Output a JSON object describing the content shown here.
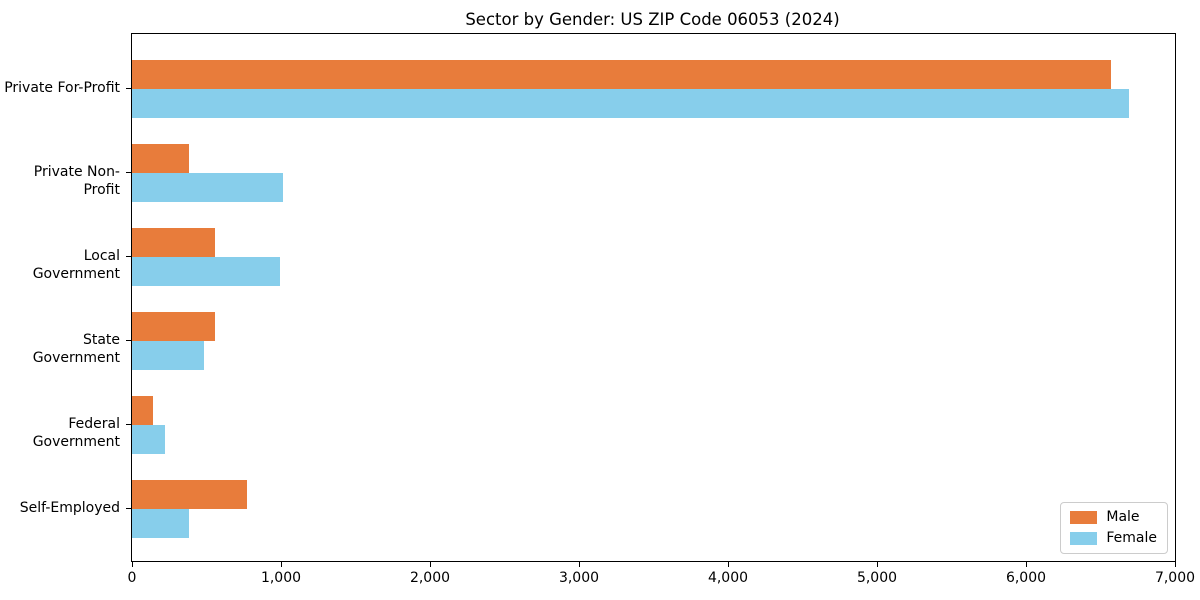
{
  "chart_data": {
    "type": "bar",
    "orientation": "horizontal",
    "title": "Sector by Gender: US ZIP Code 06053 (2024)",
    "categories": [
      "Private For-Profit",
      "Private Non-Profit",
      "Local Government",
      "State Government",
      "Federal Government",
      "Self-Employed"
    ],
    "series": [
      {
        "name": "Male",
        "color": "#E87C3B",
        "values": [
          6570,
          385,
          560,
          560,
          140,
          770
        ]
      },
      {
        "name": "Female",
        "color": "#87CEEB",
        "values": [
          6690,
          1015,
          990,
          480,
          220,
          380
        ]
      }
    ],
    "xlim": [
      0,
      7000
    ],
    "xticks": [
      0,
      1000,
      2000,
      3000,
      4000,
      5000,
      6000,
      7000
    ],
    "xtick_labels": [
      "0",
      "1,000",
      "2,000",
      "3,000",
      "4,000",
      "5,000",
      "6,000",
      "7,000"
    ],
    "xlabel": "",
    "ylabel": "",
    "grid": false,
    "legend": {
      "position": "lower right",
      "entries": [
        "Male",
        "Female"
      ]
    }
  }
}
